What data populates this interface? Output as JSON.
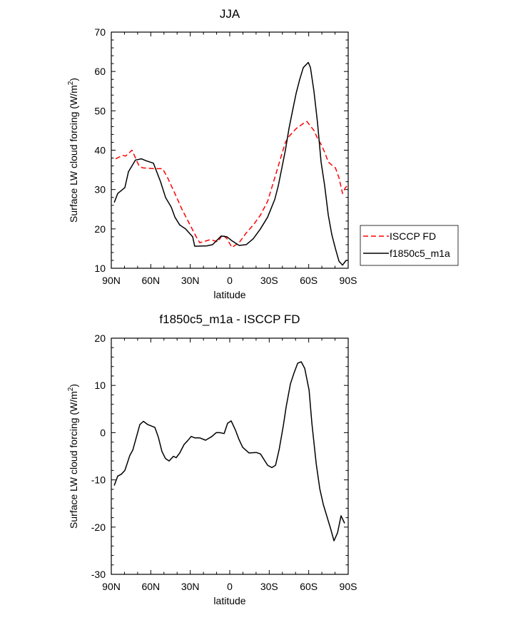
{
  "chart_data": [
    {
      "type": "line",
      "title": "JJA",
      "xlabel": "latitude",
      "ylabel": "Surface LW cloud forcing (W/m",
      "ylabel_sup": "2",
      "ylabel_close": ")",
      "xlim": [
        90,
        -90
      ],
      "ylim": [
        10,
        70
      ],
      "xticks": [
        90,
        60,
        30,
        0,
        -30,
        -60,
        -90
      ],
      "xtick_labels": [
        "90N",
        "60N",
        "30N",
        "0",
        "30S",
        "60S",
        "90S"
      ],
      "yticks": [
        10,
        20,
        30,
        40,
        50,
        60,
        70
      ],
      "ytick_labels": [
        "10",
        "20",
        "30",
        "40",
        "50",
        "60",
        "70"
      ],
      "legend": {
        "placement": "right",
        "entries": [
          "ISCCP FD",
          "f1850c5_m1a"
        ]
      },
      "series": [
        {
          "name": "ISCCP FD",
          "color": "#ff0000",
          "dash": true,
          "x": [
            86.7,
            81.3,
            79.2,
            74.3,
            68.9,
            66.1,
            58,
            51,
            47.2,
            41.7,
            36.3,
            30.9,
            25.5,
            22.8,
            17.4,
            14.6,
            9.2,
            5.4,
            2.1,
            -1.6,
            -7.1,
            -12.5,
            -17.9,
            -23.3,
            -28.8,
            -34.2,
            -39.6,
            -42.3,
            -45,
            -50.5,
            -55.9,
            -58.6,
            -64,
            -66.7,
            -69.4,
            -72.1,
            -74.9,
            -77.6,
            -80.3,
            -83,
            -85.7,
            -87.9,
            -89.5
          ],
          "y": [
            37.8,
            38.7,
            38.5,
            40,
            36,
            35.5,
            35.3,
            35.3,
            33,
            29,
            25,
            21.5,
            18,
            16.5,
            17,
            17.3,
            16.7,
            18.5,
            17.5,
            15.3,
            16.5,
            19,
            21,
            23.5,
            27,
            33,
            39,
            42,
            43.5,
            45.5,
            46.8,
            47.3,
            45,
            43,
            41.5,
            39.5,
            37,
            36.2,
            35.5,
            33,
            29,
            30.5,
            31
          ]
        },
        {
          "name": "f1850c5_m1a",
          "color": "#000000",
          "dash": false,
          "x": [
            87.8,
            85.1,
            79.7,
            77,
            71.6,
            67.2,
            63.4,
            58,
            52.6,
            48.8,
            44.4,
            41.7,
            38,
            33.6,
            28.2,
            26.6,
            17.4,
            13,
            6.5,
            2.1,
            -1.6,
            -7.1,
            -12.5,
            -17.9,
            -23.3,
            -28.8,
            -34.2,
            -36.9,
            -42.3,
            -45,
            -47.7,
            -50.5,
            -53.2,
            -55.9,
            -59.7,
            -61.3,
            -64,
            -66.7,
            -69.4,
            -72.1,
            -74.9,
            -77.6,
            -80.3,
            -83,
            -85.7,
            -88.4,
            -89.5
          ],
          "y": [
            26.7,
            29,
            30.5,
            34.5,
            37.5,
            37.8,
            37.3,
            36.7,
            32,
            28,
            25.5,
            23,
            21,
            20,
            18,
            15.6,
            15.7,
            16,
            18.2,
            18,
            17,
            15.8,
            16,
            17.5,
            20,
            23,
            27.5,
            31,
            40,
            45.5,
            50,
            54.5,
            58,
            61,
            62.3,
            61,
            55,
            47,
            37,
            31,
            23.5,
            18.5,
            15,
            11.8,
            10.8,
            12,
            12
          ]
        }
      ]
    },
    {
      "type": "line",
      "title": "f1850c5_m1a - ISCCP FD",
      "xlabel": "latitude",
      "ylabel": "Surface LW cloud forcing (W/m",
      "ylabel_sup": "2",
      "ylabel_close": ")",
      "xlim": [
        90,
        -90
      ],
      "ylim": [
        -30,
        20
      ],
      "xticks": [
        90,
        60,
        30,
        0,
        -30,
        -60,
        -90
      ],
      "xtick_labels": [
        "90N",
        "60N",
        "30N",
        "0",
        "30S",
        "60S",
        "90S"
      ],
      "yticks": [
        -30,
        -20,
        -10,
        0,
        10,
        20
      ],
      "ytick_labels": [
        "-30",
        "-20",
        "-10",
        "0",
        "10",
        "20"
      ],
      "series": [
        {
          "name": "f1850c5_m1a - ISCCP FD",
          "color": "#000000",
          "dash": false,
          "x": [
            87.8,
            85.1,
            82.4,
            79.7,
            75.9,
            73.7,
            68.3,
            65.6,
            62.3,
            56.9,
            54.2,
            51.5,
            48.8,
            46.1,
            42.8,
            40.7,
            38,
            34.7,
            32,
            29.3,
            26.6,
            22.8,
            18.4,
            13.5,
            10.3,
            7.6,
            4.3,
            1.6,
            -1.1,
            -4.4,
            -7.1,
            -9.8,
            -14.7,
            -20.1,
            -23.3,
            -28.8,
            -32,
            -34.8,
            -37.5,
            -40.7,
            -42.9,
            -46.1,
            -48.8,
            -51.6,
            -54.3,
            -57,
            -60.3,
            -62.4,
            -65.7,
            -68.4,
            -71.1,
            -76.5,
            -79.2,
            -81.9,
            -84.6,
            -87.3
          ],
          "y": [
            -11.2,
            -9.2,
            -8.8,
            -8,
            -4.8,
            -3.7,
            1.7,
            2.4,
            1.7,
            1.1,
            -1,
            -4,
            -5.5,
            -6,
            -5,
            -5.3,
            -4.3,
            -2.5,
            -1.7,
            -0.8,
            -1.1,
            -1.1,
            -1.6,
            -0.8,
            0,
            0,
            -0.2,
            2,
            2.5,
            0.5,
            -1.5,
            -3.1,
            -4.3,
            -4.2,
            -4.5,
            -6.9,
            -7.4,
            -6.9,
            -3.6,
            1.5,
            5.5,
            10.3,
            12.6,
            14.7,
            15,
            13.6,
            9,
            2,
            -6.6,
            -11.9,
            -15.2,
            -20.2,
            -22.9,
            -21.2,
            -17.6,
            -19.2
          ]
        }
      ]
    }
  ]
}
